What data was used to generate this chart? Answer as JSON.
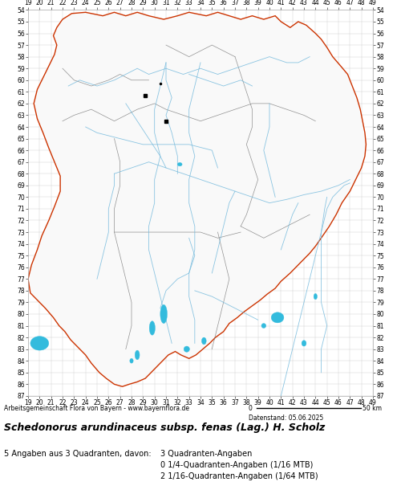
{
  "title": "Schedonorus arundinaceus subsp. fenas (Lag.) H. Scholz",
  "subtitle": "Datenstand: 05.06.2025",
  "attribution": "Arbeitsgemeinschaft Flora von Bayern - www.bayernflora.de",
  "stats_left": "5 Angaben aus 3 Quadranten, davon:",
  "stats_right": [
    "3 Quadranten-Angaben",
    "0 1/4-Quadranten-Angaben (1/16 MTB)",
    "2 1/16-Quadranten-Angaben (1/64 MTB)"
  ],
  "scale_0": "0",
  "scale_50": "50 km",
  "x_min": 19,
  "x_max": 49,
  "y_min": 54,
  "y_max": 87,
  "bg_color": "#ffffff",
  "grid_color": "#cccccc",
  "outer_border_color": "#cc3300",
  "inner_border_color": "#777777",
  "river_color": "#77bbdd",
  "lake_color": "#33bbdd",
  "point_color": "#000000",
  "tick_fontsize": 5.5,
  "attribution_fontsize": 5.5,
  "title_fontsize": 9,
  "stats_fontsize": 7
}
